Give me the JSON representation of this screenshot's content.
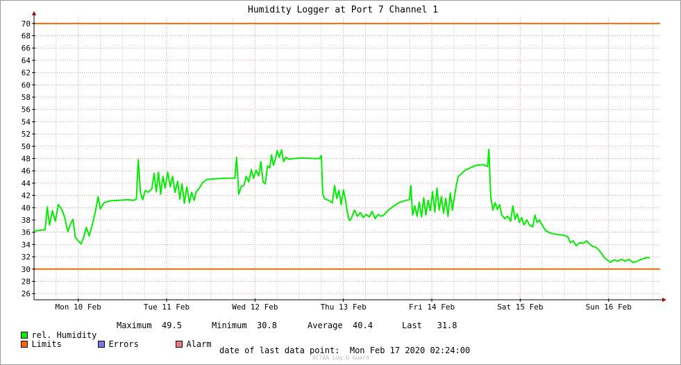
{
  "chart_data": {
    "type": "line",
    "title": "Humidity Logger at Port 7 Channel 1",
    "ylim": [
      25,
      71
    ],
    "y_ticks": [
      26,
      28,
      30,
      32,
      34,
      36,
      38,
      40,
      42,
      44,
      46,
      48,
      50,
      52,
      54,
      56,
      58,
      60,
      62,
      64,
      66,
      68,
      70
    ],
    "xlim_hours": [
      0,
      170
    ],
    "x_ticks": [
      {
        "label": "Mon 10 Feb",
        "hour": 12
      },
      {
        "label": "Tue 11 Feb",
        "hour": 36
      },
      {
        "label": "Wed 12 Feb",
        "hour": 60
      },
      {
        "label": "Thu 13 Feb",
        "hour": 84
      },
      {
        "label": "Fri 14 Feb",
        "hour": 108
      },
      {
        "label": "Sat 15 Feb",
        "hour": 132
      },
      {
        "label": "Sun 16 Feb",
        "hour": 156
      }
    ],
    "grid": true,
    "limits": [
      30,
      70
    ],
    "series": [
      {
        "name": "rel. Humidity",
        "color": "#00ee00",
        "points": [
          [
            0,
            36.2
          ],
          [
            3,
            36.4
          ],
          [
            3.6,
            40.1
          ],
          [
            4.2,
            37.2
          ],
          [
            5,
            39.5
          ],
          [
            5.8,
            37.8
          ],
          [
            6.6,
            40.5
          ],
          [
            7.5,
            39.8
          ],
          [
            8.3,
            38.5
          ],
          [
            9.2,
            36.1
          ],
          [
            10,
            37.5
          ],
          [
            10.6,
            38.1
          ],
          [
            11.2,
            35.2
          ],
          [
            12,
            34.6
          ],
          [
            12.8,
            34.1
          ],
          [
            13.5,
            35.2
          ],
          [
            14.2,
            36.8
          ],
          [
            15,
            35.4
          ],
          [
            15.8,
            37.2
          ],
          [
            16.6,
            39.2
          ],
          [
            17.4,
            41.8
          ],
          [
            18,
            39.8
          ],
          [
            19,
            40.8
          ],
          [
            20.5,
            41.1
          ],
          [
            23,
            41.2
          ],
          [
            25.5,
            41.3
          ],
          [
            27,
            41.2
          ],
          [
            27.8,
            41.4
          ],
          [
            28.3,
            47.8
          ],
          [
            28.9,
            42.5
          ],
          [
            29.5,
            41.3
          ],
          [
            30.2,
            42.8
          ],
          [
            31,
            42.5
          ],
          [
            32,
            43.1
          ],
          [
            32.6,
            45.6
          ],
          [
            33.2,
            42.6
          ],
          [
            33.8,
            45.8
          ],
          [
            34.4,
            42.2
          ],
          [
            35,
            45.1
          ],
          [
            35.6,
            43.2
          ],
          [
            36.3,
            45.8
          ],
          [
            37,
            43.4
          ],
          [
            37.6,
            45.1
          ],
          [
            38.3,
            42.5
          ],
          [
            39,
            44.3
          ],
          [
            39.6,
            41.4
          ],
          [
            40.2,
            43.9
          ],
          [
            40.8,
            40.7
          ],
          [
            41.5,
            43.4
          ],
          [
            42.2,
            40.8
          ],
          [
            42.8,
            42.5
          ],
          [
            43.5,
            41.2
          ],
          [
            44,
            42.6
          ],
          [
            44.8,
            43.1
          ],
          [
            45.8,
            44.1
          ],
          [
            47,
            44.6
          ],
          [
            49,
            44.7
          ],
          [
            52,
            44.8
          ],
          [
            54.5,
            44.8
          ],
          [
            55,
            48.2
          ],
          [
            55.6,
            42.2
          ],
          [
            56.3,
            43.5
          ],
          [
            57,
            43.6
          ],
          [
            57.6,
            45.1
          ],
          [
            58.3,
            44.2
          ],
          [
            59,
            46.2
          ],
          [
            59.6,
            44.8
          ],
          [
            60.3,
            46.1
          ],
          [
            61,
            45.2
          ],
          [
            61.6,
            47.5
          ],
          [
            62.2,
            44.2
          ],
          [
            62.8,
            43.9
          ],
          [
            63.4,
            46.8
          ],
          [
            64,
            46.5
          ],
          [
            64.5,
            48.6
          ],
          [
            65,
            46.9
          ],
          [
            65.6,
            48.1
          ],
          [
            66,
            49.3
          ],
          [
            66.6,
            48.2
          ],
          [
            67.2,
            49.4
          ],
          [
            67.8,
            47.5
          ],
          [
            68.4,
            48.2
          ],
          [
            69.2,
            47.9
          ],
          [
            70.5,
            48.0
          ],
          [
            73,
            48.1
          ],
          [
            76,
            48.0
          ],
          [
            77.5,
            48.0
          ],
          [
            78,
            48.5
          ],
          [
            78.4,
            42.2
          ],
          [
            79,
            41.4
          ],
          [
            80,
            41.2
          ],
          [
            81,
            40.8
          ],
          [
            81.6,
            43.6
          ],
          [
            82.2,
            41.5
          ],
          [
            82.8,
            42.8
          ],
          [
            83.4,
            40.5
          ],
          [
            84,
            42.9
          ],
          [
            84.6,
            41.2
          ],
          [
            85,
            39.4
          ],
          [
            85.6,
            37.9
          ],
          [
            86.2,
            38.3
          ],
          [
            87,
            39.6
          ],
          [
            87.8,
            38.6
          ],
          [
            88.6,
            39.2
          ],
          [
            89.4,
            38.4
          ],
          [
            90.2,
            38.9
          ],
          [
            91,
            38.5
          ],
          [
            91.8,
            39.4
          ],
          [
            92.6,
            38.2
          ],
          [
            93.4,
            38.9
          ],
          [
            94.2,
            38.6
          ],
          [
            95,
            38.8
          ],
          [
            96,
            39.5
          ],
          [
            97.5,
            40.2
          ],
          [
            99,
            40.8
          ],
          [
            101,
            41.2
          ],
          [
            101.9,
            41.3
          ],
          [
            102.3,
            43.6
          ],
          [
            102.8,
            38.8
          ],
          [
            103.4,
            40.3
          ],
          [
            104,
            38.6
          ],
          [
            104.6,
            40.9
          ],
          [
            105.2,
            38.5
          ],
          [
            105.8,
            41.6
          ],
          [
            106.4,
            38.8
          ],
          [
            107,
            41.2
          ],
          [
            107.6,
            39.5
          ],
          [
            108.2,
            42.6
          ],
          [
            108.8,
            39.3
          ],
          [
            109.4,
            43.2
          ],
          [
            110,
            39.6
          ],
          [
            110.6,
            41.8
          ],
          [
            111.2,
            39.1
          ],
          [
            111.8,
            41.5
          ],
          [
            112.4,
            38.6
          ],
          [
            113,
            42.4
          ],
          [
            113.6,
            39.6
          ],
          [
            114,
            41.2
          ],
          [
            114.6,
            43.5
          ],
          [
            115.2,
            45.1
          ],
          [
            116,
            45.5
          ],
          [
            117,
            46.1
          ],
          [
            118.5,
            46.5
          ],
          [
            120,
            46.9
          ],
          [
            122,
            47.0
          ],
          [
            123.1,
            46.7
          ],
          [
            123.5,
            49.5
          ],
          [
            124,
            41.8
          ],
          [
            124.6,
            39.6
          ],
          [
            125.2,
            40.8
          ],
          [
            125.8,
            39.7
          ],
          [
            126.4,
            40.5
          ],
          [
            127,
            38.8
          ],
          [
            127.8,
            38.2
          ],
          [
            128.6,
            38.6
          ],
          [
            129.4,
            37.8
          ],
          [
            130,
            40.3
          ],
          [
            130.6,
            38.1
          ],
          [
            131.2,
            39.0
          ],
          [
            131.8,
            37.6
          ],
          [
            132.4,
            38.4
          ],
          [
            133,
            37.2
          ],
          [
            133.8,
            38.0
          ],
          [
            134.6,
            37.1
          ],
          [
            135.4,
            36.9
          ],
          [
            136,
            38.8
          ],
          [
            136.6,
            37.6
          ],
          [
            137.2,
            38.0
          ],
          [
            138,
            37.1
          ],
          [
            139,
            36.2
          ],
          [
            140.5,
            35.8
          ],
          [
            142.5,
            35.6
          ],
          [
            144,
            35.5
          ],
          [
            145,
            35.2
          ],
          [
            145.6,
            34.3
          ],
          [
            146.4,
            34.6
          ],
          [
            147.2,
            33.8
          ],
          [
            148.2,
            34.3
          ],
          [
            149.2,
            34.2
          ],
          [
            150,
            34.6
          ],
          [
            150.8,
            34.1
          ],
          [
            151.6,
            33.7
          ],
          [
            152.4,
            33.6
          ],
          [
            153.2,
            33.2
          ],
          [
            154,
            32.6
          ],
          [
            154.8,
            31.9
          ],
          [
            155.6,
            31.5
          ],
          [
            156.5,
            31.1
          ],
          [
            157.5,
            31.5
          ],
          [
            158.5,
            31.3
          ],
          [
            159.5,
            31.6
          ],
          [
            160.5,
            31.3
          ],
          [
            161.5,
            31.6
          ],
          [
            162.5,
            31.1
          ],
          [
            163.5,
            31.2
          ],
          [
            164.5,
            31.5
          ],
          [
            165.5,
            31.7
          ],
          [
            166.5,
            31.9
          ],
          [
            167.2,
            31.8
          ]
        ]
      }
    ],
    "legend": {
      "series_label": "rel. Humidity",
      "stats": {
        "maximum_label": "Maximum",
        "maximum": "49.5",
        "minimum_label": "Minimum",
        "minimum": "30.8",
        "average_label": "Average",
        "average": "40.4",
        "last_label": "Last",
        "last": "31.8"
      },
      "limits_label": "Limits",
      "errors_label": "Errors",
      "alarm_label": "Alarm"
    },
    "footer": {
      "date_label": "date of last data point:",
      "date_value": "Mon Feb 17 2020 02:24:00",
      "credit": "OCTAA Log & Guard"
    }
  },
  "colors": {
    "data": "#00ee00",
    "limits": "#ff6600",
    "errors": "#7777ee",
    "alarm": "#ee7777",
    "grid_major": "#dd9999",
    "grid_minor": "#e6e6e6",
    "axis_arrow": "#aa0000"
  }
}
